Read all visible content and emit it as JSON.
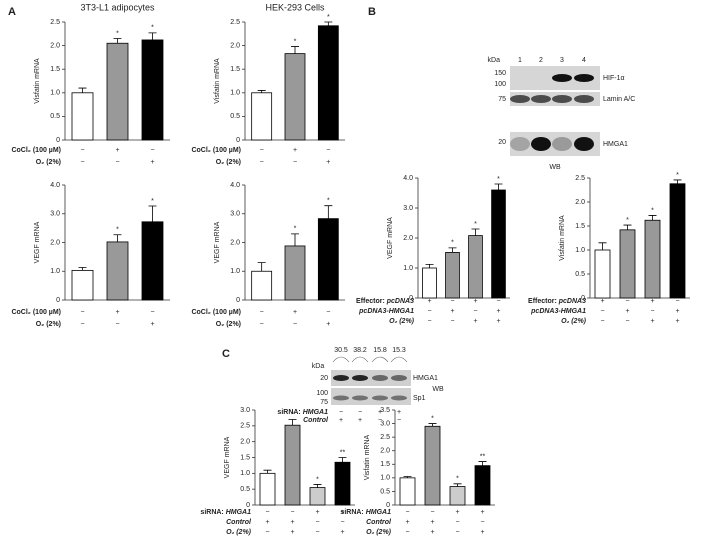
{
  "panels": [
    "A",
    "B",
    "C"
  ],
  "chart_data": [
    {
      "type": "bar",
      "title": "3T3-L1 adipocytes",
      "ylabel": "Visfatin mRNA",
      "values": [
        1.0,
        2.05,
        2.12
      ],
      "errors": [
        0.1,
        0.1,
        0.15
      ],
      "colors": [
        "#ffffff",
        "#999999",
        "#000000"
      ],
      "stars": [
        null,
        "*",
        "*"
      ],
      "ylim": [
        0,
        2.5
      ],
      "yticks": [
        0,
        0.5,
        {
          "value": 1,
          "label": "1.0"
        },
        1.5,
        {
          "value": 2,
          "label": "2.0"
        },
        2.5
      ],
      "conditions": [
        {
          "label": "CoCl₂ (100 µM)",
          "signs": [
            "−",
            "+",
            "−"
          ]
        },
        {
          "label": "O₂ (2%)",
          "signs": [
            "−",
            "−",
            "+"
          ]
        }
      ]
    },
    {
      "type": "bar",
      "title": "HEK-293 Cells",
      "ylabel": "Visfatin mRNA",
      "values": [
        1.0,
        1.83,
        2.42
      ],
      "errors": [
        0.05,
        0.15,
        0.08
      ],
      "colors": [
        "#ffffff",
        "#999999",
        "#000000"
      ],
      "stars": [
        null,
        "*",
        "*"
      ],
      "ylim": [
        0,
        2.5
      ],
      "yticks": [
        0,
        0.5,
        {
          "value": 1,
          "label": "1.0"
        },
        1.5,
        {
          "value": 2,
          "label": "2.0"
        },
        2.5
      ],
      "conditions": [
        {
          "label": "CoCl₂ (100 µM)",
          "signs": [
            "−",
            "+",
            "−"
          ]
        },
        {
          "label": "O₂ (2%)",
          "signs": [
            "−",
            "−",
            "+"
          ]
        }
      ]
    },
    {
      "type": "bar",
      "ylabel": "VEGF mRNA",
      "values": [
        1.03,
        2.02,
        2.72
      ],
      "errors": [
        0.1,
        0.25,
        0.55
      ],
      "colors": [
        "#ffffff",
        "#999999",
        "#000000"
      ],
      "stars": [
        null,
        "*",
        "*"
      ],
      "ylim": [
        0,
        4
      ],
      "yticks": [
        0,
        {
          "value": 1,
          "label": "1.0"
        },
        {
          "value": 2,
          "label": "2.0"
        },
        {
          "value": 3,
          "label": "3.0"
        },
        {
          "value": 4,
          "label": "4.0"
        }
      ],
      "conditions": [
        {
          "label": "CoCl₂ (100 µM)",
          "signs": [
            "−",
            "+",
            "−"
          ]
        },
        {
          "label": "O₂ (2%)",
          "signs": [
            "−",
            "−",
            "+"
          ]
        }
      ]
    },
    {
      "type": "bar",
      "ylabel": "VEGF mRNA",
      "values": [
        1.0,
        1.88,
        2.83
      ],
      "errors": [
        0.3,
        0.42,
        0.45
      ],
      "colors": [
        "#ffffff",
        "#999999",
        "#000000"
      ],
      "stars": [
        null,
        "*",
        "*"
      ],
      "ylim": [
        0,
        4
      ],
      "yticks": [
        0,
        {
          "value": 1,
          "label": "1.0"
        },
        {
          "value": 2,
          "label": "2.0"
        },
        {
          "value": 3,
          "label": "3.0"
        },
        {
          "value": 4,
          "label": "4.0"
        }
      ],
      "conditions": [
        {
          "label": "CoCl₂ (100 µM)",
          "signs": [
            "−",
            "+",
            "−"
          ]
        },
        {
          "label": "O₂ (2%)",
          "signs": [
            "−",
            "−",
            "+"
          ]
        }
      ]
    },
    {
      "type": "bar",
      "ylabel": "VEGF mRNA",
      "values": [
        1.0,
        1.52,
        2.08,
        3.6
      ],
      "errors": [
        0.12,
        0.15,
        0.22,
        0.2
      ],
      "colors": [
        "#ffffff",
        "#999999",
        "#999999",
        "#000000"
      ],
      "stars": [
        null,
        "*",
        "*",
        "*"
      ],
      "ylim": [
        0,
        4
      ],
      "yticks": [
        0,
        {
          "value": 1,
          "label": "1.0"
        },
        {
          "value": 2,
          "label": "2.0"
        },
        {
          "value": 3,
          "label": "3.0"
        },
        {
          "value": 4,
          "label": "4.0"
        }
      ],
      "conditions": [
        {
          "prefix": "Effector:",
          "label": "pcDNA3",
          "signs": [
            "+",
            "−",
            "+",
            "−"
          ]
        },
        {
          "label": "pcDNA3-HMGA1",
          "signs": [
            "−",
            "+",
            "−",
            "+"
          ]
        },
        {
          "label": "O₂ (2%)",
          "signs": [
            "−",
            "−",
            "+",
            "+"
          ]
        }
      ]
    },
    {
      "type": "bar",
      "ylabel": "Visfatin mRNA",
      "values": [
        1.0,
        1.42,
        1.62,
        2.38
      ],
      "errors": [
        0.15,
        0.1,
        0.1,
        0.08
      ],
      "colors": [
        "#ffffff",
        "#999999",
        "#999999",
        "#000000"
      ],
      "stars": [
        null,
        "*",
        "*",
        "*"
      ],
      "ylim": [
        0,
        2.5
      ],
      "yticks": [
        0,
        0.5,
        {
          "value": 1,
          "label": "1.0"
        },
        1.5,
        {
          "value": 2,
          "label": "2.0"
        },
        2.5
      ],
      "conditions": [
        {
          "prefix": "Effector:",
          "label": "pcDNA3",
          "signs": [
            "+",
            "−",
            "+",
            "−"
          ]
        },
        {
          "label": "pcDNA3-HMGA1",
          "signs": [
            "−",
            "+",
            "−",
            "+"
          ]
        },
        {
          "label": "O₂ (2%)",
          "signs": [
            "−",
            "−",
            "+",
            "+"
          ]
        }
      ]
    },
    {
      "type": "bar",
      "ylabel": "VEGF mRNA",
      "values": [
        1.0,
        2.52,
        0.55,
        1.35
      ],
      "errors": [
        0.1,
        0.18,
        0.1,
        0.15
      ],
      "colors": [
        "#ffffff",
        "#999999",
        "#cccccc",
        "#000000"
      ],
      "stars": [
        null,
        "*",
        "*",
        "**"
      ],
      "ylim": [
        0,
        3
      ],
      "yticks": [
        0,
        0.5,
        {
          "value": 1,
          "label": "1.0"
        },
        1.5,
        {
          "value": 2,
          "label": "2.0"
        },
        2.5,
        {
          "value": 3,
          "label": "3.0"
        }
      ],
      "conditions": [
        {
          "prefix": "siRNA:",
          "label": "HMGA1",
          "signs": [
            "−",
            "−",
            "+",
            "+"
          ]
        },
        {
          "label": "Control",
          "signs": [
            "+",
            "+",
            "−",
            "−"
          ]
        },
        {
          "label": "O₂ (2%)",
          "signs": [
            "−",
            "+",
            "−",
            "+"
          ]
        }
      ]
    },
    {
      "type": "bar",
      "ylabel": "Visfatin mRNA",
      "values": [
        1.0,
        2.9,
        0.68,
        1.45
      ],
      "errors": [
        0.05,
        0.1,
        0.1,
        0.15
      ],
      "colors": [
        "#ffffff",
        "#999999",
        "#cccccc",
        "#000000"
      ],
      "stars": [
        null,
        "*",
        "*",
        "**"
      ],
      "ylim": [
        0,
        3.5
      ],
      "yticks": [
        0,
        0.5,
        {
          "value": 1,
          "label": "1.0"
        },
        1.5,
        {
          "value": 2,
          "label": "2.0"
        },
        2.5,
        {
          "value": 3,
          "label": "3.0"
        },
        3.5
      ],
      "conditions": [
        {
          "prefix": "siRNA:",
          "label": "HMGA1",
          "signs": [
            "−",
            "−",
            "+",
            "+"
          ]
        },
        {
          "label": "Control",
          "signs": [
            "+",
            "+",
            "−",
            "−"
          ]
        },
        {
          "label": "O₂ (2%)",
          "signs": [
            "−",
            "+",
            "−",
            "+"
          ]
        }
      ]
    }
  ],
  "blots": [
    {
      "kda": "kDa",
      "lanes": [
        "1",
        "2",
        "3",
        "4"
      ],
      "markers": [
        "150",
        "100",
        "75",
        "20"
      ],
      "bands": [
        "HIF-1α",
        "Lamin A/C",
        "HMGA1"
      ],
      "method": "WB"
    },
    {
      "kda": "kDa",
      "quant": [
        "30.5",
        "38.2",
        "15.8",
        "15.3"
      ],
      "markers": [
        "20",
        "100",
        "75"
      ],
      "bands": [
        "HMGA1",
        "Sp1"
      ],
      "method": "WB",
      "conditions": [
        {
          "prefix": "siRNA:",
          "label": "HMGA1",
          "signs": [
            "−",
            "−",
            "+",
            "+"
          ]
        },
        {
          "label": "Control",
          "signs": [
            "+",
            "+",
            "−",
            "−"
          ]
        }
      ]
    }
  ]
}
